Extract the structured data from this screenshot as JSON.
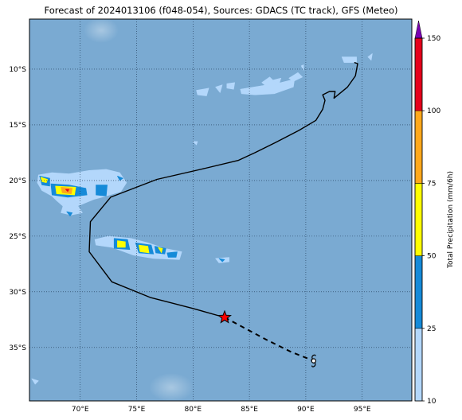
{
  "title": "Forecast of 2024013106 (f048-054), Sources: GDACS (TC track), GFS (Meteo)",
  "map": {
    "lon_range": [
      65.5,
      99.4
    ],
    "lat_range": [
      -39.8,
      -5.5
    ],
    "lon_ticks": [
      {
        "value": 70,
        "label": "70°E"
      },
      {
        "value": 75,
        "label": "75°E"
      },
      {
        "value": 80,
        "label": "80°E"
      },
      {
        "value": 85,
        "label": "85°E"
      },
      {
        "value": 90,
        "label": "90°E"
      },
      {
        "value": 95,
        "label": "95°E"
      }
    ],
    "lat_ticks": [
      {
        "value": -10,
        "label": "10°S"
      },
      {
        "value": -15,
        "label": "15°S"
      },
      {
        "value": -20,
        "label": "20°S"
      },
      {
        "value": -25,
        "label": "25°S"
      },
      {
        "value": -30,
        "label": "30°S"
      },
      {
        "value": -35,
        "label": "35°S"
      }
    ],
    "grid": "dotted",
    "background_color": "#7aaad2",
    "past_track": [
      [
        94.3,
        -9.4
      ],
      [
        94.6,
        -9.5
      ],
      [
        94.4,
        -10.6
      ],
      [
        93.7,
        -11.6
      ],
      [
        92.5,
        -12.6
      ],
      [
        92.6,
        -12.0
      ],
      [
        92.1,
        -12.0
      ],
      [
        91.5,
        -12.3
      ],
      [
        91.7,
        -12.8
      ],
      [
        91.5,
        -13.6
      ],
      [
        90.9,
        -14.6
      ],
      [
        89.4,
        -15.5
      ],
      [
        87.3,
        -16.6
      ],
      [
        85.5,
        -17.5
      ],
      [
        84.0,
        -18.2
      ],
      [
        81.1,
        -18.9
      ],
      [
        76.8,
        -19.9
      ],
      [
        72.7,
        -21.5
      ],
      [
        70.9,
        -23.7
      ],
      [
        70.8,
        -26.4
      ],
      [
        72.8,
        -29.1
      ],
      [
        76.2,
        -30.5
      ],
      [
        80.0,
        -31.5
      ],
      [
        82.8,
        -32.3
      ]
    ],
    "forecast_track": [
      [
        82.8,
        -32.3
      ],
      [
        86.5,
        -34.3
      ],
      [
        88.7,
        -35.4
      ],
      [
        90.7,
        -36.2
      ]
    ],
    "current_position": [
      82.8,
      -32.3
    ],
    "forecast_position": [
      90.7,
      -36.2
    ],
    "precip_areas": [
      {
        "cls": 1,
        "pts": [
          [
            66.3,
            -19.5
          ],
          [
            67.5,
            -19.3
          ],
          [
            69.0,
            -19.4
          ],
          [
            70.8,
            -19.1
          ],
          [
            72.3,
            -19.0
          ],
          [
            73.5,
            -19.3
          ],
          [
            74.1,
            -20.2
          ],
          [
            73.6,
            -21.0
          ],
          [
            72.3,
            -21.4
          ],
          [
            71.2,
            -21.7
          ],
          [
            70.0,
            -22.2
          ],
          [
            68.8,
            -22.6
          ],
          [
            67.9,
            -21.8
          ],
          [
            67.5,
            -21.4
          ],
          [
            66.6,
            -20.9
          ],
          [
            66.2,
            -20.2
          ]
        ]
      },
      {
        "cls": 1,
        "pts": [
          [
            68.5,
            -22.2
          ],
          [
            69.8,
            -22.3
          ],
          [
            70.2,
            -22.9
          ],
          [
            69.2,
            -23.1
          ],
          [
            68.3,
            -22.9
          ]
        ]
      },
      {
        "cls": 1,
        "pts": [
          [
            71.3,
            -25.3
          ],
          [
            72.5,
            -25.0
          ],
          [
            74.5,
            -25.2
          ],
          [
            76.0,
            -25.6
          ],
          [
            77.5,
            -26.1
          ],
          [
            79.0,
            -26.4
          ],
          [
            78.8,
            -27.1
          ],
          [
            76.5,
            -27.0
          ],
          [
            74.7,
            -26.7
          ],
          [
            72.8,
            -26.0
          ],
          [
            71.4,
            -25.8
          ]
        ]
      },
      {
        "cls": 1,
        "pts": [
          [
            82.0,
            -27.0
          ],
          [
            83.2,
            -26.9
          ],
          [
            83.2,
            -27.3
          ],
          [
            82.3,
            -27.4
          ]
        ]
      },
      {
        "cls": 1,
        "pts": [
          [
            84.2,
            -11.8
          ],
          [
            86.0,
            -11.5
          ],
          [
            87.8,
            -11.2
          ],
          [
            89.0,
            -10.9
          ],
          [
            88.9,
            -11.6
          ],
          [
            87.2,
            -12.2
          ],
          [
            85.5,
            -12.3
          ],
          [
            84.3,
            -12.2
          ]
        ]
      },
      {
        "cls": 1,
        "pts": [
          [
            87.0,
            -11.0
          ],
          [
            87.8,
            -10.8
          ],
          [
            87.6,
            -11.4
          ]
        ]
      },
      {
        "cls": 1,
        "pts": [
          [
            80.3,
            -11.9
          ],
          [
            81.4,
            -11.7
          ],
          [
            81.2,
            -12.4
          ],
          [
            80.4,
            -12.3
          ]
        ]
      },
      {
        "cls": 1,
        "pts": [
          [
            82.0,
            -11.6
          ],
          [
            82.6,
            -11.4
          ],
          [
            82.4,
            -12.1
          ]
        ]
      },
      {
        "cls": 1,
        "pts": [
          [
            83.0,
            -11.3
          ],
          [
            83.7,
            -11.2
          ],
          [
            83.6,
            -11.8
          ],
          [
            83.0,
            -11.7
          ]
        ]
      },
      {
        "cls": 1,
        "pts": [
          [
            88.5,
            -10.8
          ],
          [
            89.3,
            -10.3
          ],
          [
            89.7,
            -10.7
          ],
          [
            88.9,
            -11.1
          ]
        ]
      },
      {
        "cls": 1,
        "pts": [
          [
            86.1,
            -11.2
          ],
          [
            86.8,
            -10.7
          ],
          [
            87.4,
            -11.3
          ],
          [
            86.8,
            -11.8
          ]
        ]
      },
      {
        "cls": 1,
        "pts": [
          [
            93.2,
            -8.9
          ],
          [
            94.5,
            -8.9
          ],
          [
            94.5,
            -9.4
          ],
          [
            93.4,
            -9.4
          ]
        ]
      },
      {
        "cls": 1,
        "pts": [
          [
            95.5,
            -8.9
          ],
          [
            95.9,
            -8.6
          ],
          [
            95.8,
            -9.2
          ]
        ]
      },
      {
        "cls": 1,
        "pts": [
          [
            65.7,
            -37.8
          ],
          [
            66.3,
            -38.0
          ],
          [
            66.0,
            -38.3
          ]
        ]
      },
      {
        "cls": 1,
        "pts": [
          [
            80.0,
            -16.5
          ],
          [
            80.4,
            -16.5
          ],
          [
            80.3,
            -16.8
          ]
        ]
      },
      {
        "cls": 1,
        "pts": [
          [
            89.6,
            -9.7
          ],
          [
            89.8,
            -9.6
          ],
          [
            89.8,
            -10.1
          ]
        ]
      },
      {
        "cls": 2,
        "pts": [
          [
            66.4,
            -19.6
          ],
          [
            67.3,
            -19.8
          ],
          [
            67.3,
            -20.5
          ],
          [
            66.6,
            -20.4
          ]
        ]
      },
      {
        "cls": 2,
        "pts": [
          [
            67.4,
            -20.3
          ],
          [
            69.0,
            -20.4
          ],
          [
            70.5,
            -20.7
          ],
          [
            70.6,
            -21.3
          ],
          [
            68.9,
            -21.5
          ],
          [
            67.5,
            -21.3
          ]
        ]
      },
      {
        "cls": 2,
        "pts": [
          [
            71.4,
            -20.4
          ],
          [
            72.4,
            -20.4
          ],
          [
            72.3,
            -21.4
          ],
          [
            71.4,
            -21.3
          ]
        ]
      },
      {
        "cls": 2,
        "pts": [
          [
            68.8,
            -22.8
          ],
          [
            69.3,
            -22.9
          ],
          [
            69.1,
            -23.2
          ]
        ]
      },
      {
        "cls": 2,
        "pts": [
          [
            73.3,
            -19.6
          ],
          [
            73.8,
            -19.8
          ],
          [
            73.5,
            -20.0
          ]
        ]
      },
      {
        "cls": 2,
        "pts": [
          [
            73.0,
            -25.2
          ],
          [
            74.2,
            -25.3
          ],
          [
            74.4,
            -26.2
          ],
          [
            73.0,
            -26.1
          ]
        ]
      },
      {
        "cls": 2,
        "pts": [
          [
            74.9,
            -25.6
          ],
          [
            76.3,
            -25.8
          ],
          [
            76.5,
            -26.6
          ],
          [
            75.2,
            -26.5
          ]
        ]
      },
      {
        "cls": 2,
        "pts": [
          [
            76.6,
            -25.9
          ],
          [
            77.6,
            -26.1
          ],
          [
            77.5,
            -26.6
          ],
          [
            76.7,
            -26.5
          ]
        ]
      },
      {
        "cls": 2,
        "pts": [
          [
            77.7,
            -26.5
          ],
          [
            78.6,
            -26.4
          ],
          [
            78.5,
            -26.9
          ],
          [
            77.8,
            -26.9
          ]
        ]
      },
      {
        "cls": 2,
        "pts": [
          [
            82.3,
            -27.0
          ],
          [
            82.8,
            -27.1
          ],
          [
            82.6,
            -27.3
          ]
        ]
      },
      {
        "cls": 3,
        "pts": [
          [
            66.5,
            -19.7
          ],
          [
            67.1,
            -19.9
          ],
          [
            67.0,
            -20.2
          ],
          [
            66.6,
            -20.1
          ]
        ]
      },
      {
        "cls": 3,
        "pts": [
          [
            67.8,
            -20.5
          ],
          [
            69.6,
            -20.6
          ],
          [
            69.5,
            -21.3
          ],
          [
            67.9,
            -21.2
          ]
        ]
      },
      {
        "cls": 3,
        "pts": [
          [
            73.3,
            -25.4
          ],
          [
            74.0,
            -25.5
          ],
          [
            74.0,
            -26.0
          ],
          [
            73.3,
            -26.0
          ]
        ]
      },
      {
        "cls": 3,
        "pts": [
          [
            75.2,
            -25.8
          ],
          [
            76.0,
            -25.9
          ],
          [
            76.1,
            -26.5
          ],
          [
            75.3,
            -26.4
          ]
        ]
      },
      {
        "cls": 3,
        "pts": [
          [
            76.9,
            -26.0
          ],
          [
            77.3,
            -26.1
          ],
          [
            77.2,
            -26.5
          ]
        ]
      },
      {
        "cls": 4,
        "pts": [
          [
            68.3,
            -20.6
          ],
          [
            69.3,
            -20.7
          ],
          [
            69.2,
            -21.2
          ],
          [
            68.4,
            -21.1
          ]
        ]
      },
      {
        "cls": 5,
        "pts": [
          [
            68.7,
            -20.8
          ],
          [
            69.0,
            -20.8
          ],
          [
            68.9,
            -21.0
          ]
        ]
      }
    ]
  },
  "colorbar": {
    "label": "Total Precipitation (mm/6h)",
    "ticks": [
      "10",
      "25",
      "50",
      "75",
      "100",
      "150"
    ],
    "colors": [
      "#b3d7fb",
      "#158ad8",
      "#ffff00",
      "#ffa81b",
      "#e5001b",
      "#7a00b2"
    ]
  }
}
